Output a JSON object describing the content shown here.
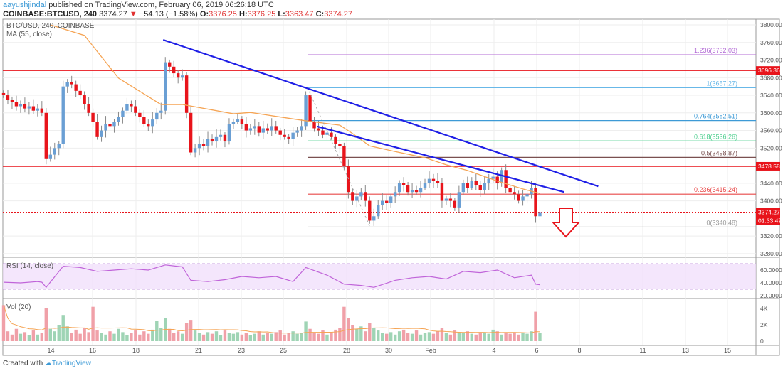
{
  "header": {
    "author": "aayushjindal",
    "published": " published on TradingView.com, February 06, 2019 06:26:18 UTC",
    "symbol": "COINBASE:BTCUSD, 240",
    "last": "3374.27",
    "change_icon": "triangle-down-icon",
    "change": "−54.13 (−1.58%)",
    "o_label": "O:",
    "o": "3376.25",
    "h_label": "H:",
    "h": "3376.25",
    "l_label": "L:",
    "l": "3363.47",
    "c_label": "C:",
    "c": "3374.27"
  },
  "legend": {
    "title": "BTC/USD, 240, COINBASE",
    "ma": "MA (55, close)",
    "rsi": "RSI (14, close)",
    "vol": "Vol (20)"
  },
  "footer": {
    "created": "Created with",
    "brand": "TradingView",
    "logo_icon": "tradingview-logo-icon"
  },
  "colors": {
    "up": "#6a9fd4",
    "down": "#e8141b",
    "ma": "#f5a454",
    "trend": "#1f1fe6",
    "level": "#e8141b",
    "rsi": "#c064d9",
    "rsi_band": "#efdcfb"
  },
  "chart_data": {
    "type": "candlestick",
    "price_axis": {
      "ticks": [
        "3800.00",
        "3760.00",
        "3720.00",
        "3680.00",
        "3640.00",
        "3600.00",
        "3560.00",
        "3520.00",
        "3440.00",
        "3400.00",
        "3320.00",
        "3280.00"
      ],
      "range": [
        3280,
        3800
      ]
    },
    "time_axis": {
      "ticks": [
        "14",
        "16",
        "18",
        "21",
        "23",
        "25",
        "28",
        "30",
        "Feb",
        "4",
        "6",
        "8",
        "11",
        "13",
        "15"
      ]
    },
    "closes": [
      3640,
      3630,
      3625,
      3615,
      3620,
      3610,
      3615,
      3605,
      3610,
      3600,
      3495,
      3505,
      3520,
      3530,
      3660,
      3670,
      3665,
      3650,
      3640,
      3620,
      3600,
      3580,
      3545,
      3560,
      3575,
      3570,
      3580,
      3590,
      3605,
      3620,
      3615,
      3600,
      3590,
      3575,
      3570,
      3585,
      3600,
      3605,
      3715,
      3705,
      3690,
      3680,
      3685,
      3600,
      3510,
      3520,
      3530,
      3525,
      3540,
      3535,
      3545,
      3550,
      3535,
      3575,
      3580,
      3585,
      3575,
      3560,
      3565,
      3570,
      3555,
      3565,
      3560,
      3570,
      3560,
      3550,
      3545,
      3540,
      3555,
      3560,
      3570,
      3640,
      3580,
      3565,
      3560,
      3550,
      3555,
      3545,
      3530,
      3525,
      3480,
      3420,
      3400,
      3410,
      3420,
      3400,
      3355,
      3365,
      3390,
      3400,
      3395,
      3410,
      3420,
      3440,
      3435,
      3420,
      3425,
      3420,
      3430,
      3440,
      3450,
      3445,
      3440,
      3400,
      3405,
      3400,
      3385,
      3420,
      3440,
      3430,
      3445,
      3435,
      3425,
      3440,
      3450,
      3455,
      3440,
      3470,
      3430,
      3420,
      3415,
      3400,
      3410,
      3415,
      3430,
      3365,
      3374.27
    ],
    "ma55": [
      [
        11,
        3800
      ],
      [
        19,
        3776
      ],
      [
        27,
        3679
      ],
      [
        37,
        3619
      ],
      [
        42,
        3619
      ],
      [
        54,
        3598
      ],
      [
        58,
        3601
      ],
      [
        62,
        3595
      ],
      [
        71,
        3582
      ],
      [
        79,
        3572
      ],
      [
        82,
        3553
      ],
      [
        86,
        3525
      ],
      [
        92,
        3512
      ],
      [
        99,
        3498
      ],
      [
        104,
        3482
      ],
      [
        109,
        3469
      ],
      [
        116,
        3445
      ],
      [
        122,
        3427
      ],
      [
        126,
        3417
      ]
    ],
    "trendlines": [
      {
        "from": [
          37.5,
          3766
        ],
        "to": [
          139.7,
          3433
        ]
      },
      {
        "from": [
          73.7,
          3569
        ],
        "to": [
          131.7,
          3420
        ]
      }
    ],
    "levels": [
      {
        "price": 3696.36,
        "label": "3696.36"
      },
      {
        "price": 3478.58,
        "label": "3478.58"
      }
    ],
    "current": {
      "price": 3374.27,
      "label": "3374.27",
      "countdown": "01:33:47"
    },
    "fib": [
      {
        "ratio": "1.236",
        "price": 3732.03,
        "label": "1.236(3732.03)",
        "color": "#b36bd6"
      },
      {
        "ratio": "1",
        "price": 3657.27,
        "label": "1(3657.27)",
        "color": "#68b8e8"
      },
      {
        "ratio": "0.764",
        "price": 3582.51,
        "label": "0.764(3582.51)",
        "color": "#3d9ad6"
      },
      {
        "ratio": "0.618",
        "price": 3536.26,
        "label": "0.618(3536.26)",
        "color": "#4fcf8f"
      },
      {
        "ratio": "0.5",
        "price": 3498.87,
        "label": "0.5(3498.87)",
        "color": "#7a5050"
      },
      {
        "ratio": "0.236",
        "price": 3415.24,
        "label": "0.236(3415.24)",
        "color": "#e84848"
      },
      {
        "ratio": "0",
        "price": 3340.48,
        "label": "0(3340.48)",
        "color": "#999999"
      }
    ],
    "rsi": {
      "ticks": [
        "60.0000",
        "40.0000",
        "20.0000"
      ],
      "band": [
        30,
        70
      ],
      "points": [
        [
          0,
          41
        ],
        [
          4,
          40
        ],
        [
          8,
          42
        ],
        [
          9,
          41
        ],
        [
          10,
          33
        ],
        [
          14,
          66
        ],
        [
          18,
          64
        ],
        [
          22,
          58
        ],
        [
          26,
          60
        ],
        [
          30,
          62
        ],
        [
          34,
          60
        ],
        [
          38,
          68
        ],
        [
          42,
          65
        ],
        [
          44,
          44
        ],
        [
          48,
          42
        ],
        [
          52,
          45
        ],
        [
          56,
          50
        ],
        [
          60,
          48
        ],
        [
          64,
          50
        ],
        [
          68,
          42
        ],
        [
          71,
          64
        ],
        [
          76,
          52
        ],
        [
          80,
          38
        ],
        [
          84,
          36
        ],
        [
          87,
          33
        ],
        [
          92,
          44
        ],
        [
          96,
          48
        ],
        [
          100,
          50
        ],
        [
          104,
          46
        ],
        [
          108,
          58
        ],
        [
          112,
          56
        ],
        [
          116,
          60
        ],
        [
          120,
          48
        ],
        [
          124,
          52
        ],
        [
          125,
          38
        ],
        [
          126,
          37
        ]
      ]
    },
    "volume": {
      "ticks": [
        "4K",
        "2K",
        "0"
      ],
      "values_k": [
        4.4,
        1.2,
        0.8,
        1.5,
        0.9,
        1.1,
        0.7,
        1.3,
        0.8,
        1.0,
        4.0,
        1.5,
        1.2,
        2.0,
        3.2,
        1.8,
        1.0,
        1.4,
        0.9,
        1.6,
        1.1,
        4.2,
        1.3,
        1.0,
        0.8,
        1.2,
        0.9,
        1.5,
        1.1,
        0.7,
        1.0,
        1.3,
        0.8,
        1.2,
        0.9,
        1.4,
        2.5,
        1.6,
        2.8,
        1.5,
        1.0,
        1.2,
        0.9,
        2.2,
        2.6,
        1.3,
        1.0,
        0.8,
        1.1,
        0.9,
        1.2,
        0.7,
        1.3,
        1.0,
        0.9,
        1.1,
        0.8,
        1.0,
        0.7,
        0.9,
        1.2,
        0.8,
        1.0,
        0.9,
        1.1,
        1.3,
        0.8,
        1.0,
        1.2,
        0.9,
        1.0,
        2.4,
        1.5,
        1.0,
        0.9,
        1.3,
        0.8,
        1.1,
        1.4,
        1.6,
        4.2,
        2.8,
        2.0,
        1.5,
        1.8,
        1.2,
        2.2,
        1.6,
        1.3,
        1.0,
        0.9,
        1.1,
        0.8,
        1.2,
        1.4,
        1.0,
        0.9,
        1.3,
        0.8,
        1.0,
        1.1,
        0.9,
        1.2,
        1.6,
        1.0,
        0.8,
        1.3,
        1.1,
        1.0,
        1.2,
        0.9,
        0.8,
        1.0,
        1.1,
        0.9,
        1.4,
        1.2,
        0.8,
        1.0,
        0.9,
        1.1,
        0.8,
        1.0,
        0.9,
        1.2,
        3.6,
        1.0
      ]
    }
  }
}
